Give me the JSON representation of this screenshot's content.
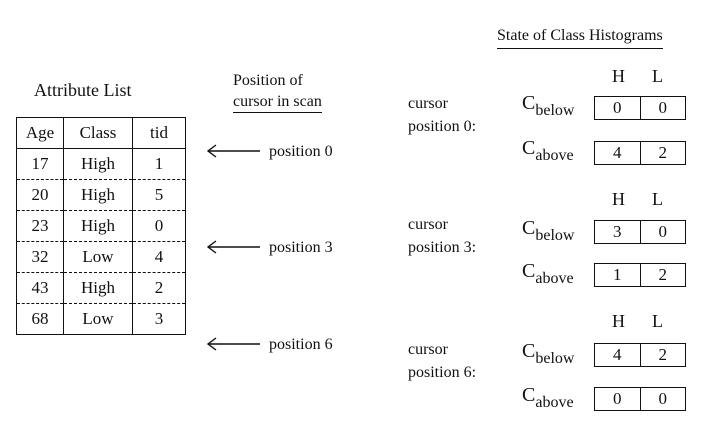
{
  "attribute_list": {
    "title": "Attribute List",
    "headers": [
      "Age",
      "Class",
      "tid"
    ],
    "rows": [
      [
        "17",
        "High",
        "1"
      ],
      [
        "20",
        "High",
        "5"
      ],
      [
        "23",
        "High",
        "0"
      ],
      [
        "32",
        "Low",
        "4"
      ],
      [
        "43",
        "High",
        "2"
      ],
      [
        "68",
        "Low",
        "3"
      ]
    ]
  },
  "cursor_column": {
    "header_line1": "Position of",
    "header_line2": "cursor in scan",
    "positions": [
      "position 0",
      "position 3",
      "position 6"
    ]
  },
  "histograms": {
    "title": "State of Class Histograms",
    "col_h": "H",
    "col_l": "L",
    "c_main": "C",
    "below_sub": "below",
    "above_sub": "above",
    "states": [
      {
        "line1": "cursor",
        "line2": "position 0:",
        "below": [
          "0",
          "0"
        ],
        "above": [
          "4",
          "2"
        ]
      },
      {
        "line1": "cursor",
        "line2": "position 3:",
        "below": [
          "3",
          "0"
        ],
        "above": [
          "1",
          "2"
        ]
      },
      {
        "line1": "cursor",
        "line2": "position 6:",
        "below": [
          "4",
          "2"
        ],
        "above": [
          "0",
          "0"
        ]
      }
    ]
  }
}
